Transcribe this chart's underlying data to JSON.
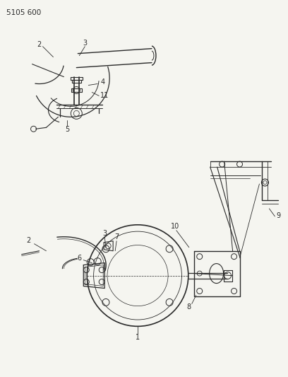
{
  "title_code": "5105 600",
  "bg": "#f5f5f0",
  "lc": "#2a2a2a",
  "fig_w": 4.08,
  "fig_h": 5.33,
  "dpi": 100,
  "fs": 7.0,
  "fs_title": 7.5
}
